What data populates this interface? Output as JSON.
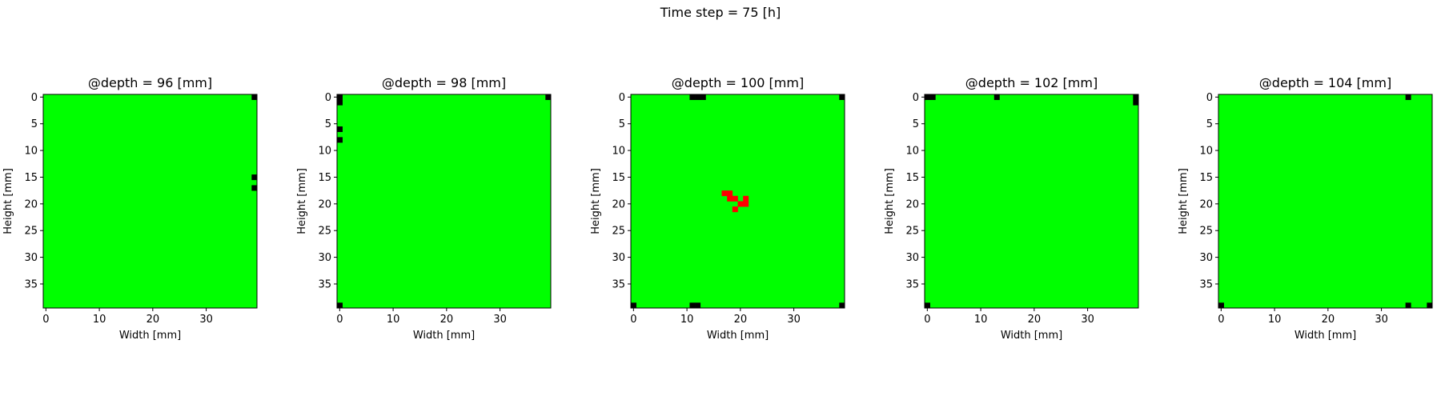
{
  "figure": {
    "suptitle": "Time step = 75 [h]"
  },
  "colors": {
    "background_cell": "#00ff00",
    "empty_cell": "#000000",
    "active_cell": "#ff0000"
  },
  "chart_data": [
    {
      "type": "heatmap",
      "title": "@depth = 96 [mm]",
      "xlabel": "Width [mm]",
      "ylabel": "Height [mm]",
      "grid_size": [
        40,
        40
      ],
      "xticks": [
        0,
        10,
        20,
        30
      ],
      "yticks": [
        0,
        5,
        10,
        15,
        20,
        25,
        30,
        35
      ],
      "background_value": "green",
      "black_cells": [
        [
          39,
          0
        ],
        [
          39,
          15
        ],
        [
          39,
          17
        ]
      ],
      "red_cells": []
    },
    {
      "type": "heatmap",
      "title": "@depth = 98 [mm]",
      "xlabel": "Width [mm]",
      "ylabel": "Height [mm]",
      "grid_size": [
        40,
        40
      ],
      "xticks": [
        0,
        10,
        20,
        30
      ],
      "yticks": [
        0,
        5,
        10,
        15,
        20,
        25,
        30,
        35
      ],
      "background_value": "green",
      "black_cells": [
        [
          0,
          0
        ],
        [
          0,
          1
        ],
        [
          39,
          0
        ],
        [
          0,
          6
        ],
        [
          0,
          8
        ],
        [
          0,
          39
        ]
      ],
      "red_cells": []
    },
    {
      "type": "heatmap",
      "title": "@depth = 100 [mm]",
      "xlabel": "Width [mm]",
      "ylabel": "Height [mm]",
      "grid_size": [
        40,
        40
      ],
      "xticks": [
        0,
        10,
        20,
        30
      ],
      "yticks": [
        0,
        5,
        10,
        15,
        20,
        25,
        30,
        35
      ],
      "background_value": "green",
      "black_cells": [
        [
          11,
          0
        ],
        [
          12,
          0
        ],
        [
          13,
          0
        ],
        [
          39,
          0
        ],
        [
          0,
          39
        ],
        [
          11,
          39
        ],
        [
          12,
          39
        ],
        [
          39,
          39
        ]
      ],
      "red_cells": [
        [
          17,
          18
        ],
        [
          18,
          18
        ],
        [
          18,
          19
        ],
        [
          19,
          19
        ],
        [
          21,
          19
        ],
        [
          20,
          20
        ],
        [
          21,
          20
        ],
        [
          19,
          21
        ]
      ]
    },
    {
      "type": "heatmap",
      "title": "@depth = 102 [mm]",
      "xlabel": "Width [mm]",
      "ylabel": "Height [mm]",
      "grid_size": [
        40,
        40
      ],
      "xticks": [
        0,
        10,
        20,
        30
      ],
      "yticks": [
        0,
        5,
        10,
        15,
        20,
        25,
        30,
        35
      ],
      "background_value": "green",
      "black_cells": [
        [
          0,
          0
        ],
        [
          1,
          0
        ],
        [
          13,
          0
        ],
        [
          39,
          0
        ],
        [
          39,
          1
        ],
        [
          0,
          39
        ]
      ],
      "red_cells": []
    },
    {
      "type": "heatmap",
      "title": "@depth = 104 [mm]",
      "xlabel": "Width [mm]",
      "ylabel": "Height [mm]",
      "grid_size": [
        40,
        40
      ],
      "xticks": [
        0,
        10,
        20,
        30
      ],
      "yticks": [
        0,
        5,
        10,
        15,
        20,
        25,
        30,
        35
      ],
      "background_value": "green",
      "black_cells": [
        [
          35,
          0
        ],
        [
          0,
          39
        ],
        [
          35,
          39
        ],
        [
          39,
          39
        ]
      ],
      "red_cells": []
    }
  ]
}
